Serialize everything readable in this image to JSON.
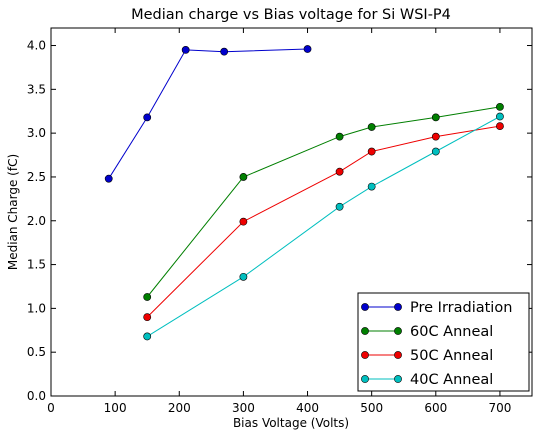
{
  "chart_data": {
    "type": "line",
    "title": "Median charge vs Bias voltage for Si WSI-P4",
    "xlabel": "Bias Voltage (Volts)",
    "ylabel": "Median Charge (fC)",
    "xlim": [
      0,
      750
    ],
    "ylim": [
      0.0,
      4.2
    ],
    "xticks": [
      0,
      100,
      200,
      300,
      400,
      500,
      600,
      700
    ],
    "xtick_labels": [
      "0",
      "100",
      "200",
      "300",
      "400",
      "500",
      "600",
      "700"
    ],
    "yticks": [
      0.0,
      0.5,
      1.0,
      1.5,
      2.0,
      2.5,
      3.0,
      3.5,
      4.0
    ],
    "ytick_labels": [
      "0.0",
      "0.5",
      "1.0",
      "1.5",
      "2.0",
      "2.5",
      "3.0",
      "3.5",
      "4.0"
    ],
    "grid": false,
    "legend_position": "bottom-right",
    "series": [
      {
        "name": "Pre Irradiation",
        "color": "#0000cc",
        "x": [
          90,
          150,
          210,
          270,
          400
        ],
        "y": [
          2.48,
          3.18,
          3.95,
          3.93,
          3.96
        ]
      },
      {
        "name": "60C Anneal",
        "color": "#007f00",
        "x": [
          150,
          300,
          450,
          500,
          600,
          700
        ],
        "y": [
          1.13,
          2.5,
          2.96,
          3.07,
          3.18,
          3.3
        ]
      },
      {
        "name": "50C Anneal",
        "color": "#ee0000",
        "x": [
          150,
          300,
          450,
          500,
          600,
          700
        ],
        "y": [
          0.9,
          1.99,
          2.56,
          2.79,
          2.96,
          3.08
        ]
      },
      {
        "name": "40C Anneal",
        "color": "#00bfbf",
        "x": [
          150,
          300,
          450,
          500,
          600,
          700
        ],
        "y": [
          0.68,
          1.36,
          2.16,
          2.39,
          2.79,
          3.19
        ]
      }
    ]
  }
}
